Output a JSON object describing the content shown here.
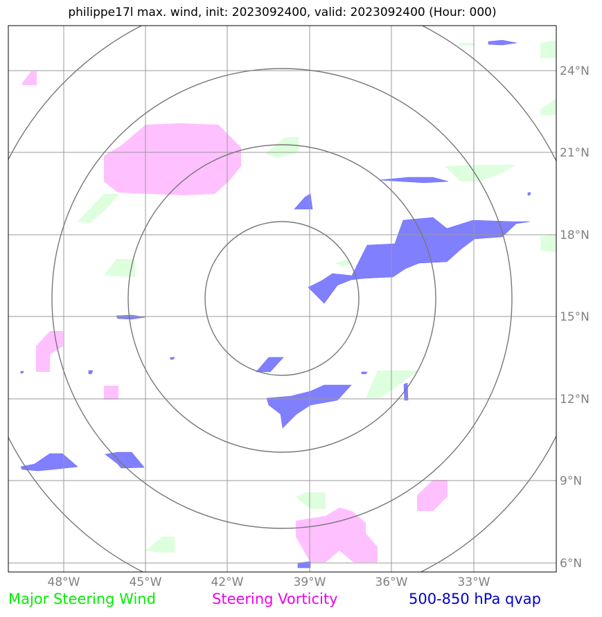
{
  "title": "philippe17l max. wind, init: 2023092400, valid: 2023092400 (Hour: 000)",
  "legend": {
    "wind_label": "Major Steering Wind",
    "vorticity_label": "Steering Vorticity",
    "qvap_label": "500-850 hPa qvap"
  },
  "colors": {
    "wind": "#00ff00",
    "vorticity": "#ff00ff",
    "qvap": "#0000ff",
    "grid": "#999999",
    "rings": "#777777"
  },
  "map": {
    "lon_ticks": [
      "48°W",
      "45°W",
      "42°W",
      "39°W",
      "36°W",
      "33°W"
    ],
    "lat_ticks": [
      "24°N",
      "21°N",
      "18°N",
      "15°N",
      "12°N",
      "9°N",
      "6°N"
    ],
    "center": {
      "lon": -40.0,
      "lat": 15.7
    },
    "range_rings_deg": [
      2.8,
      5.6,
      8.4,
      11.2
    ]
  }
}
